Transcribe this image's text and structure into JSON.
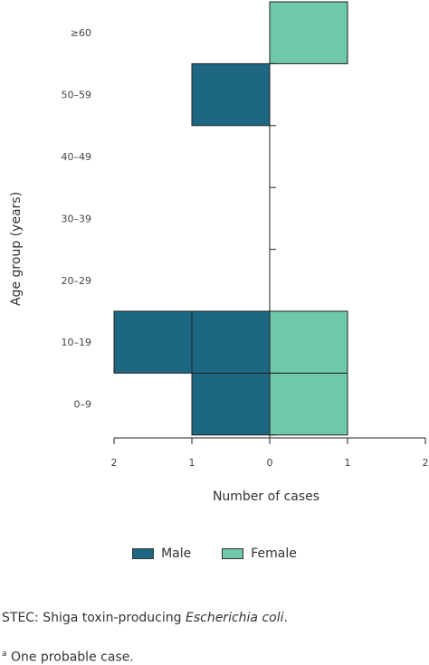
{
  "chart_data": {
    "type": "bar",
    "orientation": "horizontal-population-pyramid",
    "categories": [
      "0–9",
      "10–19",
      "20–29",
      "30–39",
      "40–49",
      "50–59",
      "≥60"
    ],
    "series": [
      {
        "name": "Male",
        "values": [
          1,
          2,
          0,
          0,
          0,
          1,
          0
        ],
        "color": "#1d6782"
      },
      {
        "name": "Female",
        "values": [
          1,
          1,
          0,
          0,
          0,
          0,
          1
        ],
        "color": "#6fc8ac"
      }
    ],
    "x_ticks": [
      "2",
      "1",
      "0",
      "1",
      "2"
    ],
    "xlabel": "Number of cases",
    "ylabel": "Age group (years)",
    "xlim": [
      -2,
      2
    ],
    "grid": false,
    "legend_position": "bottom"
  },
  "legend": {
    "male": "Male",
    "female": "Female"
  },
  "footnotes": {
    "stec_prefix": "STEC: Shiga toxin-producing ",
    "stec_italic": "Escherichia coli",
    "stec_suffix": ".",
    "note_marker": "a",
    "note_text": " One probable case."
  }
}
